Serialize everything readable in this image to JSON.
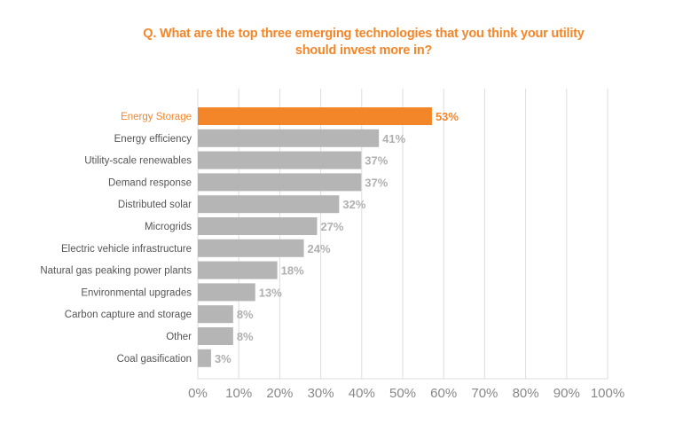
{
  "chart_data": {
    "type": "bar",
    "orientation": "horizontal",
    "title_line1": "Q. What are the top three emerging technologies that you think your utility",
    "title_line2": "should invest more in?",
    "categories": [
      "Energy Storage",
      "Energy efficiency",
      "Utility-scale renewables",
      "Demand response",
      "Distributed solar",
      "Microgrids",
      "Electric vehicle infrastructure",
      "Natural gas peaking power plants",
      "Environmental upgrades",
      "Carbon capture and storage",
      "Other",
      "Coal gasification"
    ],
    "values": [
      53,
      41,
      37,
      37,
      32,
      27,
      24,
      18,
      13,
      8,
      8,
      3
    ],
    "data_labels": [
      "53%",
      "41%",
      "37%",
      "37%",
      "32%",
      "27%",
      "24%",
      "18%",
      "13%",
      "8%",
      "8%",
      "3%"
    ],
    "highlight_index": 0,
    "xlim": [
      0,
      100
    ],
    "xticks": [
      "0%",
      "10%",
      "20%",
      "30%",
      "40%",
      "50%",
      "60%",
      "70%",
      "80%",
      "90%",
      "100%"
    ],
    "grid": "vertical",
    "colors": {
      "highlight": "#f4862a",
      "bar": "#b5b5b5",
      "label": "#555555",
      "value": "#b0b0b0",
      "tick": "#888888",
      "grid": "#dddddd"
    }
  }
}
